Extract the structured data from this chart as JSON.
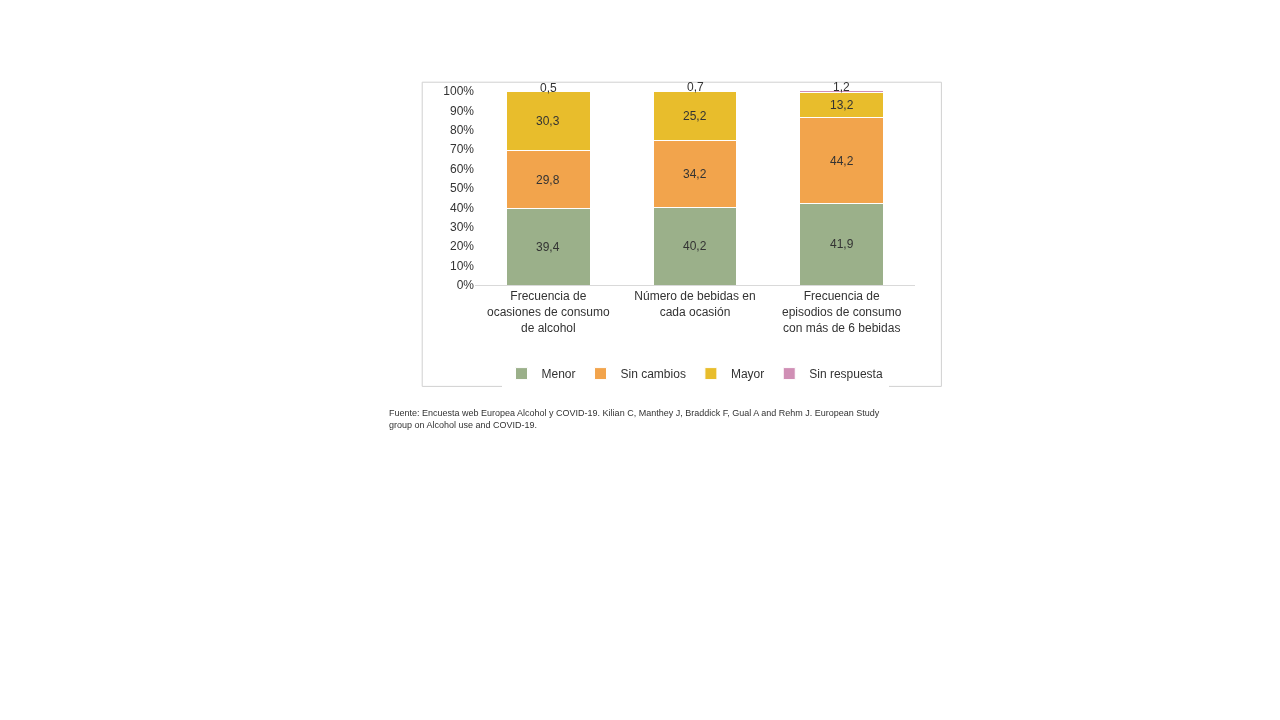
{
  "chart_data": {
    "type": "bar",
    "stacked": true,
    "categories": [
      "Frecuencia de ocasiones de consumo de alcohol",
      "Número de bebidas en cada ocasión",
      "Frecuencia de episodios de consumo con más de 6 bebidas"
    ],
    "series": [
      {
        "name": "Menor",
        "color": "#9bb08a",
        "values": [
          39.4,
          40.2,
          41.9
        ],
        "value_labels": [
          "39,4",
          "40,2",
          "41,9"
        ]
      },
      {
        "name": "Sin cambios",
        "color": "#f2a44c",
        "values": [
          29.8,
          34.2,
          44.2
        ],
        "value_labels": [
          "29,8",
          "34,2",
          "44,2"
        ]
      },
      {
        "name": "Mayor",
        "color": "#e8bd2c",
        "values": [
          30.3,
          25.2,
          13.2
        ],
        "value_labels": [
          "30,3",
          "25,2",
          "13,2"
        ]
      },
      {
        "name": "Sin respuesta",
        "color": "#d08fb5",
        "values": [
          0.5,
          0.7,
          1.2
        ],
        "value_labels": [
          "0,5",
          "0,7",
          "1,2"
        ]
      }
    ],
    "ylim": [
      0,
      100.5
    ],
    "yticks": [
      {
        "value": 0,
        "label": "0%"
      },
      {
        "value": 10,
        "label": "10%"
      },
      {
        "value": 20,
        "label": "20%"
      },
      {
        "value": 30,
        "label": "30%"
      },
      {
        "value": 40,
        "label": "40%"
      },
      {
        "value": 50,
        "label": "50%"
      },
      {
        "value": 60,
        "label": "60%"
      },
      {
        "value": 70,
        "label": "70%"
      },
      {
        "value": 80,
        "label": "80%"
      },
      {
        "value": 90,
        "label": "90%"
      },
      {
        "value": 100,
        "label": "100%"
      }
    ],
    "legend": "bottom",
    "annotations": [
      "Fuente: Encuesta web Europea Alcohol y COVID-19. Kilian C, Manthey J, Braddick F, Gual A and Rehm J. European Study group on Alcohol use and COVID-19."
    ]
  }
}
